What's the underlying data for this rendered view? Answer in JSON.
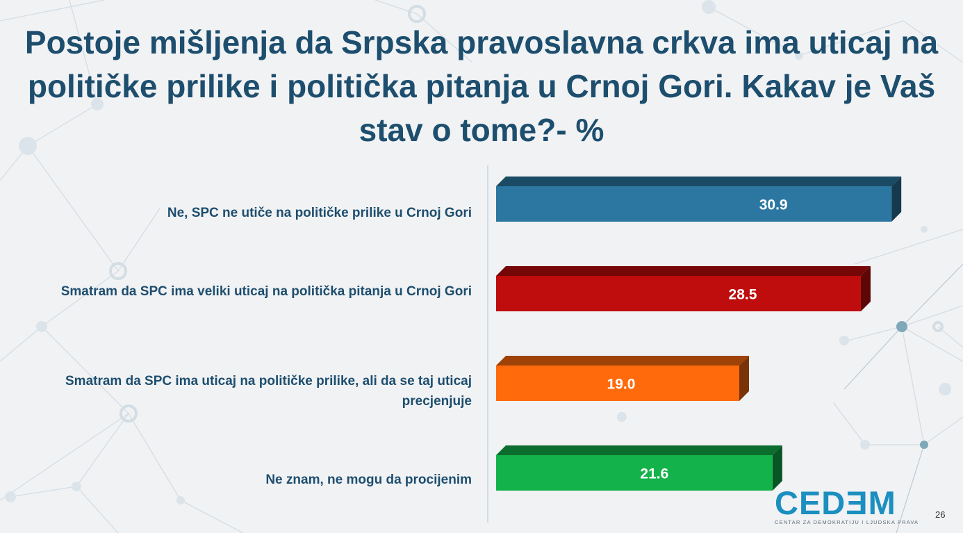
{
  "title": "Postoje mišljenja da Srpska pravoslavna crkva ima uticaj na političke prilike i politička pitanja u Crnoj Gori. Kakav je Vaš stav o tome?- %",
  "chart_data": {
    "type": "bar",
    "orientation": "horizontal",
    "style": "3d",
    "categories": [
      "Ne, SPC ne utiče na političke prilike u Crnoj Gori",
      "Smatram da SPC ima veliki uticaj na politička pitanja u Crnoj Gori",
      "Smatram da SPC ima uticaj na političke prilike, ali da se taj uticaj precjenjuje",
      "Ne znam, ne mogu da procijenim"
    ],
    "values": [
      30.9,
      28.5,
      19.0,
      21.6
    ],
    "value_labels": [
      "30.9",
      "28.5",
      "19.0",
      "21.6"
    ],
    "colors": [
      "#2c77a2",
      "#bf0c0c",
      "#ff6a0c",
      "#14b24a"
    ],
    "xlim": [
      0,
      32
    ],
    "grid": false,
    "legend": "none"
  },
  "logo": {
    "name": "CEDEM",
    "text": "CEDƎM",
    "subtitle": "CENTAR ZA DEMOKRATIJU I LJUDSKA PRAVA"
  },
  "page_number": "26"
}
